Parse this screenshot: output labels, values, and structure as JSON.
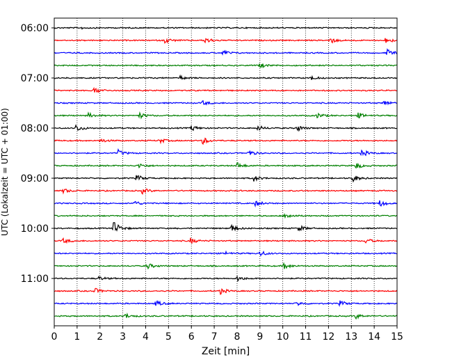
{
  "chart_data": {
    "type": "line",
    "title": "",
    "xlabel": "Zeit  [min]",
    "ylabel": "UTC (Lokalzeit = UTC + 01:00)",
    "xlim": [
      0,
      15
    ],
    "xticks": [
      "0",
      "1",
      "2",
      "3",
      "4",
      "5",
      "6",
      "7",
      "8",
      "9",
      "10",
      "11",
      "12",
      "13",
      "14",
      "15"
    ],
    "yticks": [
      {
        "label": "06:00",
        "row": 0
      },
      {
        "label": "07:00",
        "row": 4
      },
      {
        "label": "08:00",
        "row": 8
      },
      {
        "label": "09:00",
        "row": 12
      },
      {
        "label": "10:00",
        "row": 16
      },
      {
        "label": "11:00",
        "row": 20
      }
    ],
    "grid_x": true,
    "trace_colors": [
      "#000000",
      "#ff0000",
      "#0000ff",
      "#008000"
    ],
    "traces": [
      {
        "start": "06:00",
        "events": [
          {
            "t": 1.2,
            "a": 0.12
          }
        ]
      },
      {
        "start": "06:15",
        "events": [
          {
            "t": 4.85,
            "a": 0.45
          },
          {
            "t": 6.6,
            "a": 0.55
          },
          {
            "t": 12.0,
            "a": 0.65
          },
          {
            "t": 14.5,
            "a": 0.5
          }
        ]
      },
      {
        "start": "06:30",
        "events": [
          {
            "t": 7.35,
            "a": 0.5
          },
          {
            "t": 14.55,
            "a": 0.6
          }
        ]
      },
      {
        "start": "06:45",
        "events": [
          {
            "t": 8.95,
            "a": 0.45
          }
        ]
      },
      {
        "start": "07:00",
        "events": [
          {
            "t": 5.5,
            "a": 0.3
          },
          {
            "t": 11.2,
            "a": 0.35
          }
        ]
      },
      {
        "start": "07:15",
        "events": [
          {
            "t": 1.75,
            "a": 0.55
          }
        ]
      },
      {
        "start": "07:30",
        "events": [
          {
            "t": 6.5,
            "a": 0.35
          },
          {
            "t": 14.4,
            "a": 0.45
          }
        ]
      },
      {
        "start": "07:45",
        "events": [
          {
            "t": 1.5,
            "a": 0.4
          },
          {
            "t": 3.7,
            "a": 0.5
          },
          {
            "t": 11.5,
            "a": 0.45
          },
          {
            "t": 13.3,
            "a": 0.45
          }
        ]
      },
      {
        "start": "08:00",
        "events": [
          {
            "t": 0.95,
            "a": 0.6
          },
          {
            "t": 6.0,
            "a": 0.45
          },
          {
            "t": 8.9,
            "a": 0.4
          },
          {
            "t": 10.6,
            "a": 0.55
          }
        ]
      },
      {
        "start": "08:15",
        "events": [
          {
            "t": 2.0,
            "a": 0.35
          },
          {
            "t": 4.6,
            "a": 0.4
          },
          {
            "t": 6.5,
            "a": 0.6
          }
        ]
      },
      {
        "start": "08:30",
        "events": [
          {
            "t": 2.8,
            "a": 0.5
          },
          {
            "t": 8.5,
            "a": 0.5
          },
          {
            "t": 13.45,
            "a": 0.55
          }
        ]
      },
      {
        "start": "08:45",
        "events": [
          {
            "t": 3.7,
            "a": 0.4
          },
          {
            "t": 8.0,
            "a": 0.5
          },
          {
            "t": 13.2,
            "a": 0.5
          }
        ]
      },
      {
        "start": "09:00",
        "events": [
          {
            "t": 3.6,
            "a": 0.55
          },
          {
            "t": 8.7,
            "a": 0.55
          },
          {
            "t": 13.05,
            "a": 0.6
          }
        ]
      },
      {
        "start": "09:15",
        "events": [
          {
            "t": 0.4,
            "a": 0.35
          },
          {
            "t": 3.85,
            "a": 0.45
          }
        ]
      },
      {
        "start": "09:30",
        "events": [
          {
            "t": 3.45,
            "a": 0.5
          },
          {
            "t": 8.8,
            "a": 0.45
          },
          {
            "t": 14.25,
            "a": 0.55
          }
        ]
      },
      {
        "start": "09:45",
        "events": [
          {
            "t": 10.1,
            "a": 0.55
          }
        ]
      },
      {
        "start": "10:00",
        "events": [
          {
            "t": 2.6,
            "a": 1.2
          },
          {
            "t": 7.75,
            "a": 0.6
          },
          {
            "t": 10.7,
            "a": 0.5
          }
        ]
      },
      {
        "start": "10:15",
        "events": [
          {
            "t": 0.4,
            "a": 0.4
          },
          {
            "t": 5.95,
            "a": 0.45
          },
          {
            "t": 13.6,
            "a": 0.45
          }
        ]
      },
      {
        "start": "10:30",
        "events": [
          {
            "t": 7.5,
            "a": 0.25
          },
          {
            "t": 9.0,
            "a": 0.45
          }
        ]
      },
      {
        "start": "10:45",
        "events": [
          {
            "t": 4.05,
            "a": 0.5
          },
          {
            "t": 10.05,
            "a": 0.5
          }
        ]
      },
      {
        "start": "11:00",
        "events": [
          {
            "t": 1.95,
            "a": 0.3
          },
          {
            "t": 8.0,
            "a": 0.45
          }
        ]
      },
      {
        "start": "11:15",
        "events": [
          {
            "t": 1.75,
            "a": 0.45
          },
          {
            "t": 7.25,
            "a": 0.5
          }
        ]
      },
      {
        "start": "11:30",
        "events": [
          {
            "t": 4.45,
            "a": 0.45
          },
          {
            "t": 10.6,
            "a": 0.35
          },
          {
            "t": 12.5,
            "a": 0.45
          }
        ]
      },
      {
        "start": "11:45",
        "events": [
          {
            "t": 3.1,
            "a": 0.4
          },
          {
            "t": 13.2,
            "a": 0.4
          }
        ]
      }
    ]
  }
}
